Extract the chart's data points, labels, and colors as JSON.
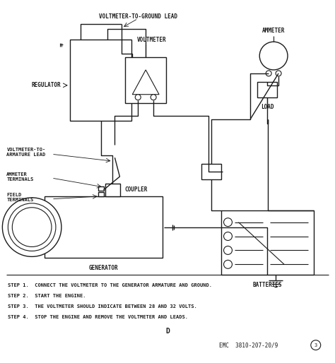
{
  "bg_color": "#ffffff",
  "line_color": "#1a1a1a",
  "step1": "STEP 1.  CONNECT THE VOLTMETER TO THE GENERATOR ARMATURE AND GROUND.",
  "step2": "STEP 2.  START THE ENGINE.",
  "step3": "STEP 3.  THE VOLTMETER SHOULD INDICATE BETWEEN 28 AND 32 VOLTS.",
  "step4": "STEP 4.  STOP THE ENGINE AND REMOVE THE VOLTMETER AND LEADS.",
  "label_d": "D",
  "label_emc": "EMC  3810-207-20/9",
  "labels": {
    "voltmeter_ground": "VOLTMETER-TO-GROUND LEAD",
    "voltmeter": "VOLTMETER",
    "ammeter": "AMMETER",
    "regulator": "REGULATOR",
    "voltmeter_armature": "VOLTMETER-TO-\nARMATURE LEAD",
    "ammeter_terminals": "AMMETER\nTERMINALS",
    "field_terminals": "FIELD\nTERMINALS",
    "coupler": "COUPLER",
    "generator": "GENERATOR",
    "load": "LOAD",
    "batteries": "BATTERIES"
  }
}
